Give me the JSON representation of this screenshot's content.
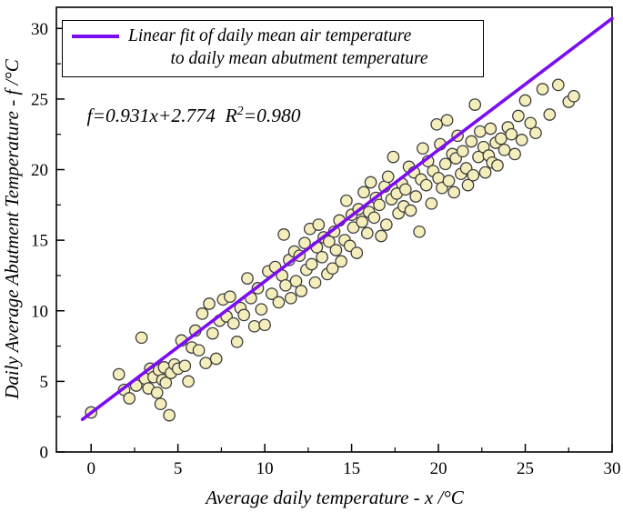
{
  "chart": {
    "legend": {
      "line1": "Linear fit of daily mean air temperature",
      "line2": "to daily mean abutment temperature"
    },
    "equation": {
      "pre": "f=0.931x+2.774  R",
      "sup": "2",
      "post": "=0.980"
    },
    "colors": {
      "fit_line": "#7b0df2",
      "point_fill": "#f4edbc",
      "point_stroke": "#3d3d3d",
      "axis": "#000000"
    }
  },
  "chart_data": {
    "type": "scatter",
    "title": "",
    "xlabel": "Average daily temperature - x /°C",
    "ylabel": "Daily Average Abutment Temperature - f /°C",
    "xlim": [
      -2,
      30
    ],
    "ylim": [
      0,
      31.5
    ],
    "x_ticks": [
      0,
      5,
      10,
      15,
      20,
      25,
      30
    ],
    "y_ticks": [
      0,
      5,
      10,
      15,
      20,
      25,
      30
    ],
    "minor_tick_step": 2.5,
    "grid": false,
    "legend_position": "top-left-inside",
    "fit": {
      "slope": 0.931,
      "intercept": 2.774,
      "r_squared": 0.98,
      "x_start": -0.5,
      "x_end": 30
    },
    "points": [
      [
        0.0,
        2.8
      ],
      [
        1.6,
        5.5
      ],
      [
        1.9,
        4.4
      ],
      [
        2.2,
        3.8
      ],
      [
        2.6,
        4.7
      ],
      [
        2.9,
        8.1
      ],
      [
        3.1,
        5.2
      ],
      [
        3.3,
        4.5
      ],
      [
        3.4,
        5.9
      ],
      [
        3.6,
        5.3
      ],
      [
        3.8,
        4.2
      ],
      [
        3.9,
        5.8
      ],
      [
        4.0,
        3.4
      ],
      [
        4.1,
        5.1
      ],
      [
        4.2,
        6.0
      ],
      [
        4.3,
        4.9
      ],
      [
        4.5,
        2.6
      ],
      [
        4.6,
        5.6
      ],
      [
        4.8,
        6.2
      ],
      [
        5.0,
        5.9
      ],
      [
        5.2,
        7.9
      ],
      [
        5.4,
        6.1
      ],
      [
        5.6,
        5.0
      ],
      [
        5.8,
        7.4
      ],
      [
        6.0,
        8.6
      ],
      [
        6.2,
        7.2
      ],
      [
        6.4,
        9.8
      ],
      [
        6.6,
        6.3
      ],
      [
        6.8,
        10.5
      ],
      [
        7.0,
        8.4
      ],
      [
        7.2,
        6.6
      ],
      [
        7.4,
        9.3
      ],
      [
        7.6,
        10.8
      ],
      [
        7.8,
        9.6
      ],
      [
        8.0,
        11.0
      ],
      [
        8.2,
        9.1
      ],
      [
        8.4,
        7.8
      ],
      [
        8.6,
        10.2
      ],
      [
        8.8,
        9.7
      ],
      [
        9.0,
        12.3
      ],
      [
        9.2,
        10.9
      ],
      [
        9.4,
        8.9
      ],
      [
        9.6,
        11.6
      ],
      [
        9.8,
        10.1
      ],
      [
        10.0,
        9.0
      ],
      [
        10.2,
        12.8
      ],
      [
        10.4,
        11.2
      ],
      [
        10.6,
        13.1
      ],
      [
        10.8,
        10.6
      ],
      [
        11.0,
        12.5
      ],
      [
        11.1,
        15.4
      ],
      [
        11.2,
        11.8
      ],
      [
        11.4,
        13.6
      ],
      [
        11.5,
        10.9
      ],
      [
        11.7,
        14.2
      ],
      [
        11.8,
        12.1
      ],
      [
        12.0,
        13.9
      ],
      [
        12.1,
        11.4
      ],
      [
        12.3,
        14.8
      ],
      [
        12.4,
        12.9
      ],
      [
        12.6,
        15.8
      ],
      [
        12.7,
        13.3
      ],
      [
        12.9,
        12.0
      ],
      [
        13.0,
        14.5
      ],
      [
        13.1,
        16.1
      ],
      [
        13.3,
        13.8
      ],
      [
        13.4,
        15.2
      ],
      [
        13.6,
        12.6
      ],
      [
        13.7,
        14.9
      ],
      [
        13.9,
        13.0
      ],
      [
        14.0,
        15.6
      ],
      [
        14.1,
        14.3
      ],
      [
        14.3,
        16.4
      ],
      [
        14.4,
        13.5
      ],
      [
        14.6,
        15.0
      ],
      [
        14.7,
        17.8
      ],
      [
        14.9,
        14.6
      ],
      [
        15.0,
        16.8
      ],
      [
        15.1,
        15.9
      ],
      [
        15.3,
        14.1
      ],
      [
        15.4,
        17.2
      ],
      [
        15.6,
        16.3
      ],
      [
        15.7,
        18.4
      ],
      [
        15.9,
        15.5
      ],
      [
        16.0,
        17.0
      ],
      [
        16.1,
        19.1
      ],
      [
        16.3,
        16.6
      ],
      [
        16.4,
        18.0
      ],
      [
        16.6,
        17.5
      ],
      [
        16.7,
        15.3
      ],
      [
        16.9,
        18.8
      ],
      [
        17.0,
        16.1
      ],
      [
        17.1,
        19.5
      ],
      [
        17.3,
        17.9
      ],
      [
        17.4,
        20.9
      ],
      [
        17.6,
        18.3
      ],
      [
        17.7,
        16.9
      ],
      [
        17.9,
        19.0
      ],
      [
        18.0,
        17.4
      ],
      [
        18.1,
        18.6
      ],
      [
        18.3,
        20.2
      ],
      [
        18.4,
        17.1
      ],
      [
        18.6,
        19.8
      ],
      [
        18.7,
        18.1
      ],
      [
        18.9,
        15.6
      ],
      [
        19.0,
        19.3
      ],
      [
        19.1,
        21.5
      ],
      [
        19.3,
        18.9
      ],
      [
        19.4,
        20.6
      ],
      [
        19.6,
        17.6
      ],
      [
        19.7,
        19.9
      ],
      [
        19.9,
        23.2
      ],
      [
        20.0,
        19.4
      ],
      [
        20.1,
        21.8
      ],
      [
        20.2,
        18.7
      ],
      [
        20.4,
        20.4
      ],
      [
        20.5,
        23.5
      ],
      [
        20.6,
        19.2
      ],
      [
        20.8,
        21.1
      ],
      [
        20.9,
        18.4
      ],
      [
        21.0,
        20.8
      ],
      [
        21.1,
        22.4
      ],
      [
        21.3,
        19.7
      ],
      [
        21.4,
        21.3
      ],
      [
        21.6,
        20.1
      ],
      [
        21.7,
        18.9
      ],
      [
        21.9,
        22.0
      ],
      [
        22.0,
        19.6
      ],
      [
        22.1,
        24.6
      ],
      [
        22.3,
        20.9
      ],
      [
        22.4,
        22.7
      ],
      [
        22.6,
        21.6
      ],
      [
        22.7,
        19.8
      ],
      [
        22.9,
        21.0
      ],
      [
        23.0,
        22.9
      ],
      [
        23.1,
        20.5
      ],
      [
        23.3,
        21.9
      ],
      [
        23.4,
        20.3
      ],
      [
        23.6,
        22.2
      ],
      [
        23.8,
        21.4
      ],
      [
        24.0,
        23.0
      ],
      [
        24.2,
        22.5
      ],
      [
        24.4,
        21.1
      ],
      [
        24.6,
        23.8
      ],
      [
        24.8,
        22.1
      ],
      [
        25.0,
        24.9
      ],
      [
        25.3,
        23.3
      ],
      [
        25.6,
        22.6
      ],
      [
        26.0,
        25.7
      ],
      [
        26.4,
        23.9
      ],
      [
        26.9,
        26.0
      ],
      [
        27.5,
        24.8
      ],
      [
        27.8,
        25.2
      ]
    ]
  }
}
